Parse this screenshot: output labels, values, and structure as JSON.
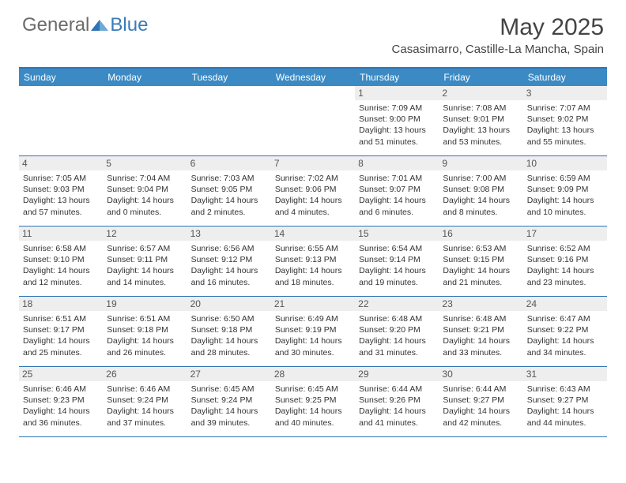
{
  "brand": {
    "part1": "General",
    "part2": "Blue"
  },
  "title": "May 2025",
  "location": "Casasimarro, Castille-La Mancha, Spain",
  "colors": {
    "header_bar": "#3b8ac4",
    "header_border": "#2f74b5",
    "daynum_bg": "#eeeeee",
    "text": "#333333",
    "brand_gray": "#6b6b6b",
    "brand_blue": "#3b7cb8"
  },
  "weekdays": [
    "Sunday",
    "Monday",
    "Tuesday",
    "Wednesday",
    "Thursday",
    "Friday",
    "Saturday"
  ],
  "weeks": [
    [
      null,
      null,
      null,
      null,
      {
        "n": "1",
        "sr": "7:09 AM",
        "ss": "9:00 PM",
        "dl": "13 hours and 51 minutes."
      },
      {
        "n": "2",
        "sr": "7:08 AM",
        "ss": "9:01 PM",
        "dl": "13 hours and 53 minutes."
      },
      {
        "n": "3",
        "sr": "7:07 AM",
        "ss": "9:02 PM",
        "dl": "13 hours and 55 minutes."
      }
    ],
    [
      {
        "n": "4",
        "sr": "7:05 AM",
        "ss": "9:03 PM",
        "dl": "13 hours and 57 minutes."
      },
      {
        "n": "5",
        "sr": "7:04 AM",
        "ss": "9:04 PM",
        "dl": "14 hours and 0 minutes."
      },
      {
        "n": "6",
        "sr": "7:03 AM",
        "ss": "9:05 PM",
        "dl": "14 hours and 2 minutes."
      },
      {
        "n": "7",
        "sr": "7:02 AM",
        "ss": "9:06 PM",
        "dl": "14 hours and 4 minutes."
      },
      {
        "n": "8",
        "sr": "7:01 AM",
        "ss": "9:07 PM",
        "dl": "14 hours and 6 minutes."
      },
      {
        "n": "9",
        "sr": "7:00 AM",
        "ss": "9:08 PM",
        "dl": "14 hours and 8 minutes."
      },
      {
        "n": "10",
        "sr": "6:59 AM",
        "ss": "9:09 PM",
        "dl": "14 hours and 10 minutes."
      }
    ],
    [
      {
        "n": "11",
        "sr": "6:58 AM",
        "ss": "9:10 PM",
        "dl": "14 hours and 12 minutes."
      },
      {
        "n": "12",
        "sr": "6:57 AM",
        "ss": "9:11 PM",
        "dl": "14 hours and 14 minutes."
      },
      {
        "n": "13",
        "sr": "6:56 AM",
        "ss": "9:12 PM",
        "dl": "14 hours and 16 minutes."
      },
      {
        "n": "14",
        "sr": "6:55 AM",
        "ss": "9:13 PM",
        "dl": "14 hours and 18 minutes."
      },
      {
        "n": "15",
        "sr": "6:54 AM",
        "ss": "9:14 PM",
        "dl": "14 hours and 19 minutes."
      },
      {
        "n": "16",
        "sr": "6:53 AM",
        "ss": "9:15 PM",
        "dl": "14 hours and 21 minutes."
      },
      {
        "n": "17",
        "sr": "6:52 AM",
        "ss": "9:16 PM",
        "dl": "14 hours and 23 minutes."
      }
    ],
    [
      {
        "n": "18",
        "sr": "6:51 AM",
        "ss": "9:17 PM",
        "dl": "14 hours and 25 minutes."
      },
      {
        "n": "19",
        "sr": "6:51 AM",
        "ss": "9:18 PM",
        "dl": "14 hours and 26 minutes."
      },
      {
        "n": "20",
        "sr": "6:50 AM",
        "ss": "9:18 PM",
        "dl": "14 hours and 28 minutes."
      },
      {
        "n": "21",
        "sr": "6:49 AM",
        "ss": "9:19 PM",
        "dl": "14 hours and 30 minutes."
      },
      {
        "n": "22",
        "sr": "6:48 AM",
        "ss": "9:20 PM",
        "dl": "14 hours and 31 minutes."
      },
      {
        "n": "23",
        "sr": "6:48 AM",
        "ss": "9:21 PM",
        "dl": "14 hours and 33 minutes."
      },
      {
        "n": "24",
        "sr": "6:47 AM",
        "ss": "9:22 PM",
        "dl": "14 hours and 34 minutes."
      }
    ],
    [
      {
        "n": "25",
        "sr": "6:46 AM",
        "ss": "9:23 PM",
        "dl": "14 hours and 36 minutes."
      },
      {
        "n": "26",
        "sr": "6:46 AM",
        "ss": "9:24 PM",
        "dl": "14 hours and 37 minutes."
      },
      {
        "n": "27",
        "sr": "6:45 AM",
        "ss": "9:24 PM",
        "dl": "14 hours and 39 minutes."
      },
      {
        "n": "28",
        "sr": "6:45 AM",
        "ss": "9:25 PM",
        "dl": "14 hours and 40 minutes."
      },
      {
        "n": "29",
        "sr": "6:44 AM",
        "ss": "9:26 PM",
        "dl": "14 hours and 41 minutes."
      },
      {
        "n": "30",
        "sr": "6:44 AM",
        "ss": "9:27 PM",
        "dl": "14 hours and 42 minutes."
      },
      {
        "n": "31",
        "sr": "6:43 AM",
        "ss": "9:27 PM",
        "dl": "14 hours and 44 minutes."
      }
    ]
  ],
  "labels": {
    "sunrise_prefix": "Sunrise: ",
    "sunset_prefix": "Sunset: ",
    "daylight_prefix": "Daylight: "
  }
}
